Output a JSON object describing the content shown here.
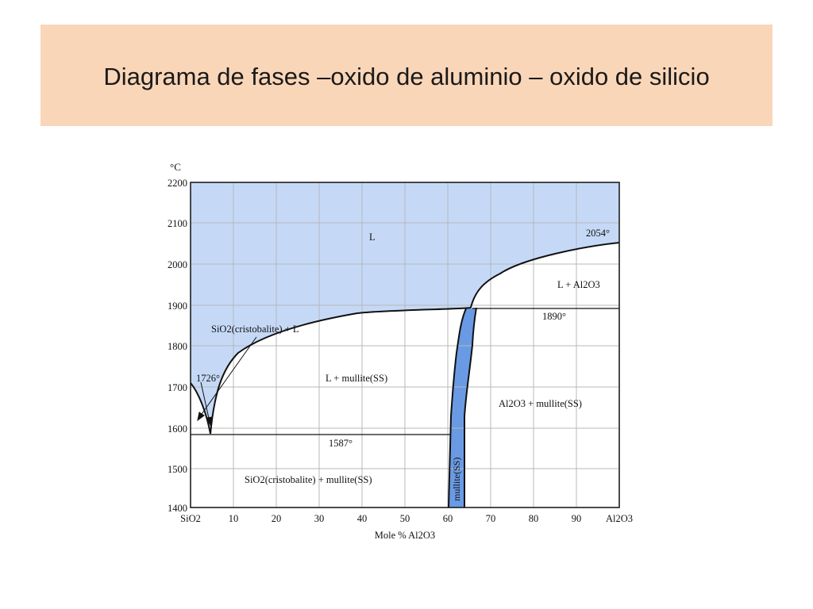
{
  "slide": {
    "title": "Diagrama de fases –oxido de aluminio – oxido de silicio"
  },
  "diagram": {
    "type": "phase-diagram",
    "y_unit": "°C",
    "y_ticks": [
      "2200",
      "2100",
      "2000",
      "1900",
      "1800",
      "1700",
      "1600",
      "1500",
      "1400"
    ],
    "x_ticks": [
      "SiO2",
      "10",
      "20",
      "30",
      "40",
      "50",
      "60",
      "70",
      "80",
      "90",
      "Al2O3"
    ],
    "x_label": "Mole % Al2O3",
    "regions": {
      "liquid": "L",
      "l_al2o3": "L + Al2O3",
      "sio2_l": "SiO2(cristobalite) + L",
      "l_mullite": "L + mullite(SS)",
      "al2o3_mullite": "Al2O3 + mullite(SS)",
      "sio2_mullite": "SiO2(cristobalite) + mullite(SS)",
      "mullite_ss": "mullite(SS)"
    },
    "temps": {
      "t2054": "2054°",
      "t1890": "1890°",
      "t1726": "1726°",
      "t1587": "1587°"
    },
    "colors": {
      "liquid_fill": "#c5d9f7",
      "mullite_fill": "#6a9ae4",
      "grid": "#b8b8b8",
      "line": "#111111"
    }
  }
}
